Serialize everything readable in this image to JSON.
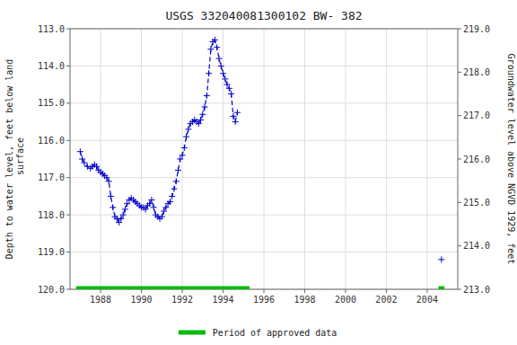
{
  "chart_data": {
    "type": "line",
    "title": "USGS 332040081300102 BW- 382",
    "y_label": "Depth to water level, feet below land\n surface",
    "y2_label": "Groundwater level above NGVD 1929, feet",
    "xlim": [
      1986.5,
      2005.5
    ],
    "xticks": [
      1988,
      1990,
      1992,
      1994,
      1996,
      1998,
      2000,
      2002,
      2004
    ],
    "ylim": [
      120.0,
      113.0
    ],
    "yticks": [
      {
        "value": 113.0,
        "label": "113.0"
      },
      {
        "value": 114.0,
        "label": "114.0"
      },
      {
        "value": 115.0,
        "label": "115.0"
      },
      {
        "value": 116.0,
        "label": "116.0"
      },
      {
        "value": 117.0,
        "label": "117.0"
      },
      {
        "value": 118.0,
        "label": "118.0"
      },
      {
        "value": 119.0,
        "label": "119.0"
      },
      {
        "value": 120.0,
        "label": "120.0"
      }
    ],
    "y2lim": [
      213.0,
      219.0
    ],
    "y2ticks": [
      {
        "value": 213.0,
        "label": "213.0"
      },
      {
        "value": 214.0,
        "label": "214.0"
      },
      {
        "value": 215.0,
        "label": "215.0"
      },
      {
        "value": 216.0,
        "label": "216.0"
      },
      {
        "value": 217.0,
        "label": "217.0"
      },
      {
        "value": 218.0,
        "label": "218.0"
      },
      {
        "value": 219.0,
        "label": "219.0"
      }
    ],
    "grid": true,
    "legend": "bottom",
    "series": [
      {
        "type": "line",
        "color": "#0000cc",
        "marker": "plus",
        "line_style": "dashed",
        "x": [
          1987.0,
          1987.1,
          1987.2,
          1987.35,
          1987.5,
          1987.6,
          1987.7,
          1987.8,
          1987.9,
          1988.0,
          1988.1,
          1988.2,
          1988.3,
          1988.4,
          1988.5,
          1988.6,
          1988.7,
          1988.8,
          1988.9,
          1989.0,
          1989.1,
          1989.2,
          1989.3,
          1989.4,
          1989.5,
          1989.6,
          1989.7,
          1989.8,
          1989.9,
          1990.0,
          1990.1,
          1990.2,
          1990.3,
          1990.4,
          1990.5,
          1990.6,
          1990.7,
          1990.8,
          1990.9,
          1991.0,
          1991.1,
          1991.2,
          1991.3,
          1991.4,
          1991.5,
          1991.6,
          1991.7,
          1991.8,
          1991.9,
          1992.0,
          1992.1,
          1992.2,
          1992.3,
          1992.4,
          1992.5,
          1992.6,
          1992.7,
          1992.8,
          1992.9,
          1993.0,
          1993.1,
          1993.2,
          1993.3,
          1993.4,
          1993.5,
          1993.6,
          1993.7,
          1993.8,
          1993.9,
          1994.0,
          1994.1,
          1994.2,
          1994.3,
          1994.4,
          1994.5,
          1994.6,
          1994.7
        ],
        "values": [
          116.3,
          116.5,
          116.6,
          116.7,
          116.75,
          116.7,
          116.65,
          116.7,
          116.8,
          116.85,
          116.9,
          116.95,
          117.0,
          117.1,
          117.5,
          117.8,
          118.05,
          118.1,
          118.2,
          118.1,
          118.0,
          117.85,
          117.7,
          117.6,
          117.55,
          117.6,
          117.65,
          117.7,
          117.75,
          117.8,
          117.8,
          117.85,
          117.75,
          117.7,
          117.6,
          117.8,
          118.0,
          118.05,
          118.1,
          118.05,
          117.9,
          117.8,
          117.7,
          117.65,
          117.5,
          117.3,
          117.1,
          116.8,
          116.5,
          116.4,
          116.2,
          115.9,
          115.7,
          115.55,
          115.5,
          115.45,
          115.5,
          115.55,
          115.45,
          115.3,
          115.1,
          114.8,
          114.2,
          113.55,
          113.35,
          113.3,
          113.5,
          113.8,
          114.0,
          114.2,
          114.35,
          114.5,
          114.6,
          114.75,
          115.35,
          115.5,
          115.25
        ]
      },
      {
        "type": "scatter",
        "color": "#0000cc",
        "marker": "plus",
        "x": [
          2004.7
        ],
        "values": [
          119.2
        ]
      },
      {
        "type": "period",
        "name": "Period of approved data",
        "color": "#00bb00",
        "x": [
          [
            1986.8,
            1995.3
          ],
          [
            2004.55,
            2004.85
          ]
        ],
        "values": [
          120.0,
          120.0
        ]
      }
    ]
  }
}
